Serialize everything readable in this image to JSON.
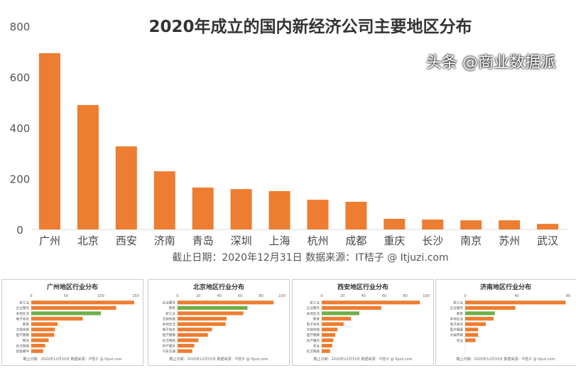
{
  "chart_data": [
    {
      "type": "bar",
      "title": "2020年成立的国内新经济公司主要地区分布",
      "footer": "截止日期：2020年12月31日    数据来源：IT桔子 @ Itjuzi.com",
      "categories": [
        "广州",
        "北京",
        "西安",
        "济南",
        "青岛",
        "深圳",
        "上海",
        "杭州",
        "成都",
        "重庆",
        "长沙",
        "南京",
        "苏州",
        "武汉"
      ],
      "values": [
        694,
        490,
        327,
        229,
        165,
        159,
        151,
        117,
        109,
        42,
        39,
        36,
        36,
        22
      ],
      "ylim": [
        0,
        800
      ],
      "yticks": [
        0,
        200,
        400,
        600,
        800
      ],
      "grid": false,
      "colors": {
        "bar": "#ed7d31"
      }
    },
    {
      "type": "bar",
      "orientation": "horizontal",
      "title": "广州地区行业分布",
      "footer": "截止日期：2020年12月31日    数据来源：IT桔子 @ Itjuzi.com",
      "categories": [
        "新工业",
        "企业服务",
        "本地生活",
        "电子商务",
        "教育",
        "文娱传媒",
        "医疗健康",
        "物流",
        "社交网络",
        "智能硬件"
      ],
      "values": [
        148,
        122,
        100,
        74,
        38,
        34,
        33,
        25,
        20,
        17
      ],
      "highlight": "本地生活",
      "xlim": [
        0,
        150
      ],
      "xticks": [
        0,
        50,
        100,
        150
      ],
      "colors": {
        "bar": "#ed7d31",
        "highlight": "#70ad47"
      }
    },
    {
      "type": "bar",
      "orientation": "horizontal",
      "title": "北京地区行业分布",
      "footer": "截止日期：2020年12月31日    数据来源：IT桔子 @ Itjuzi.com",
      "categories": [
        "企业服务",
        "教育",
        "新工业",
        "文娱传媒",
        "本地生活",
        "电子商务",
        "医疗健康",
        "社交网络",
        "房产服务",
        "汽车交通"
      ],
      "values": [
        92,
        67,
        63,
        47,
        46,
        33,
        29,
        20,
        16,
        14
      ],
      "highlight": "教育",
      "xlim": [
        0,
        100
      ],
      "xticks": [
        0,
        20,
        40,
        60,
        80,
        100
      ],
      "colors": {
        "bar": "#ed7d31",
        "highlight": "#70ad47"
      }
    },
    {
      "type": "bar",
      "orientation": "horizontal",
      "title": "西安地区行业分布",
      "footer": "截止日期：2020年12月31日    数据来源：IT桔子 @ Itjuzi.com",
      "categories": [
        "新工业",
        "企业服务",
        "本地生活",
        "教育",
        "电子商务",
        "文娱传媒",
        "医疗健康",
        "房产服务",
        "农业",
        "社交网络"
      ],
      "values": [
        94,
        57,
        36,
        28,
        21,
        15,
        13,
        11,
        10,
        8
      ],
      "highlight": "本地生活",
      "xlim": [
        0,
        100
      ],
      "xticks": [
        0,
        20,
        40,
        60,
        80,
        100
      ],
      "colors": {
        "bar": "#ed7d31",
        "highlight": "#70ad47"
      }
    },
    {
      "type": "bar",
      "orientation": "horizontal",
      "title": "济南地区行业分布",
      "footer": "截止日期：2020年12月31日    数据来源：IT桔子 @ Itjuzi.com",
      "categories": [
        "新工业",
        "企业服务",
        "教育",
        "本地生活",
        "电子商务",
        "医疗健康",
        "文娱传媒",
        "农业"
      ],
      "values": [
        78,
        39,
        23,
        22,
        16,
        10,
        10,
        8
      ],
      "highlight": "教育",
      "xlim": [
        0,
        80
      ],
      "xticks": [
        0,
        40,
        80
      ],
      "colors": {
        "bar": "#ed7d31",
        "highlight": "#70ad47"
      }
    }
  ],
  "watermark": "头条 @商业数据派"
}
